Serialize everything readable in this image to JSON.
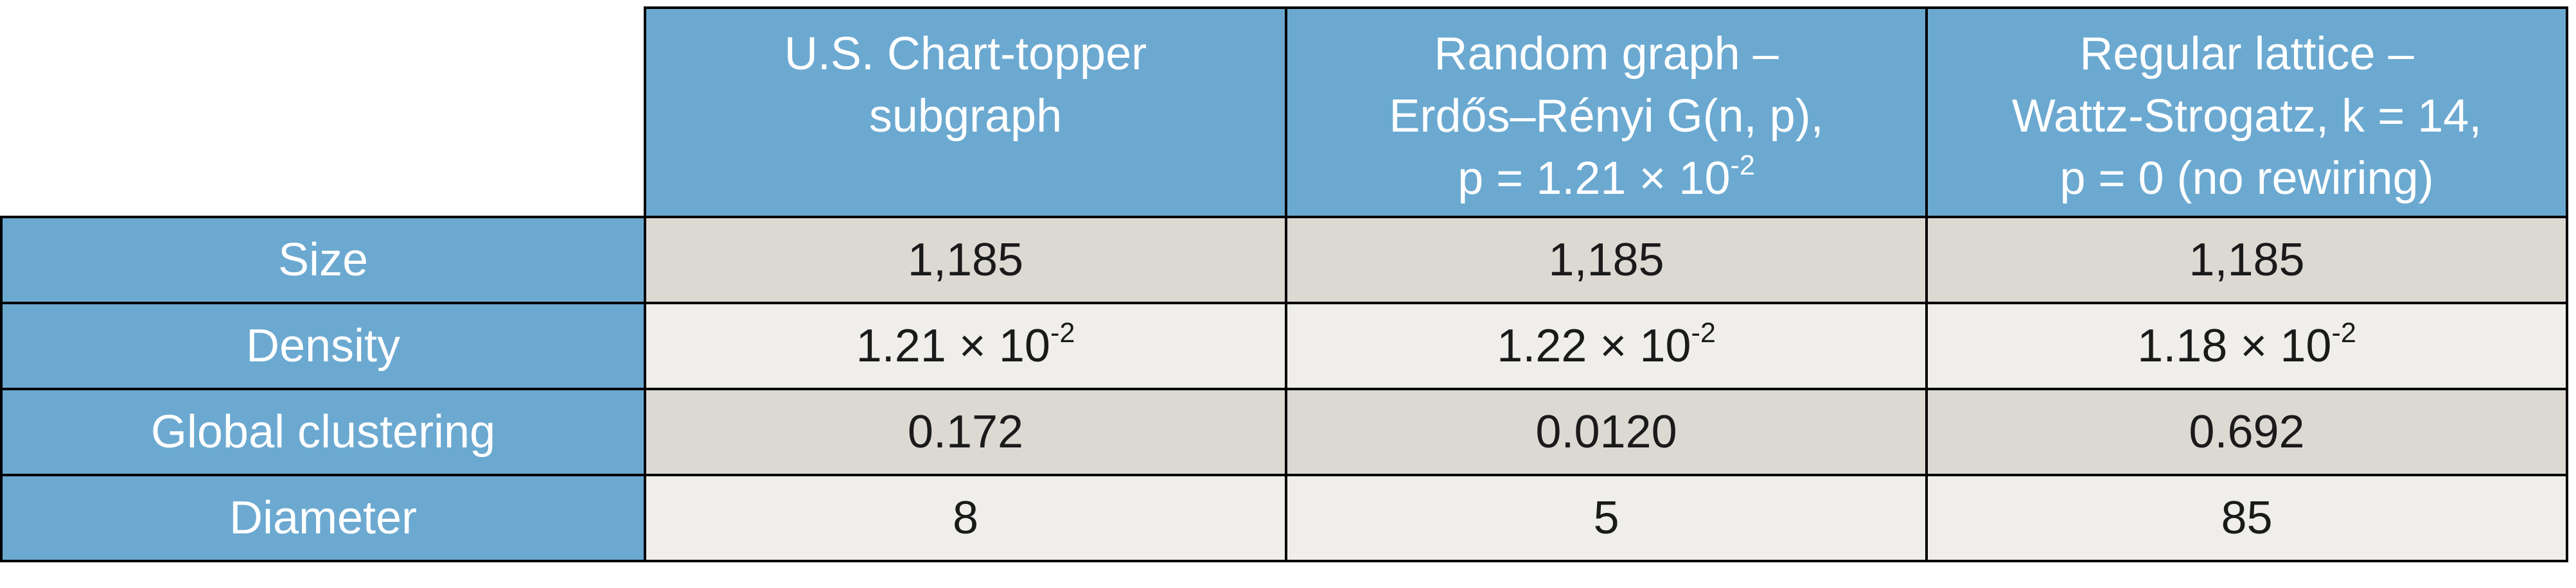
{
  "table": {
    "columns": [
      {
        "lines": [
          "U.S. Chart-topper",
          "subgraph"
        ]
      },
      {
        "lines": [
          "Random graph –",
          "Erdős–Rényi G(n, p),",
          "p = 1.21 × 10"
        ],
        "sup": "-2"
      },
      {
        "lines": [
          "Regular lattice –",
          "Wattz-Strogatz, k = 14,",
          "p = 0 (no rewiring)"
        ]
      }
    ],
    "rows": [
      {
        "label": "Size",
        "cells": [
          "1,185",
          "1,185",
          "1,185"
        ]
      },
      {
        "label": "Density",
        "cells": [
          {
            "text": "1.21 × 10",
            "sup": "-2"
          },
          {
            "text": "1.22 × 10",
            "sup": "-2"
          },
          {
            "text": "1.18 × 10",
            "sup": "-2"
          }
        ]
      },
      {
        "label": "Global clustering",
        "cells": [
          "0.172",
          "0.0120",
          "0.692"
        ]
      },
      {
        "label": "Diameter",
        "cells": [
          "8",
          "5",
          "85"
        ]
      }
    ]
  }
}
